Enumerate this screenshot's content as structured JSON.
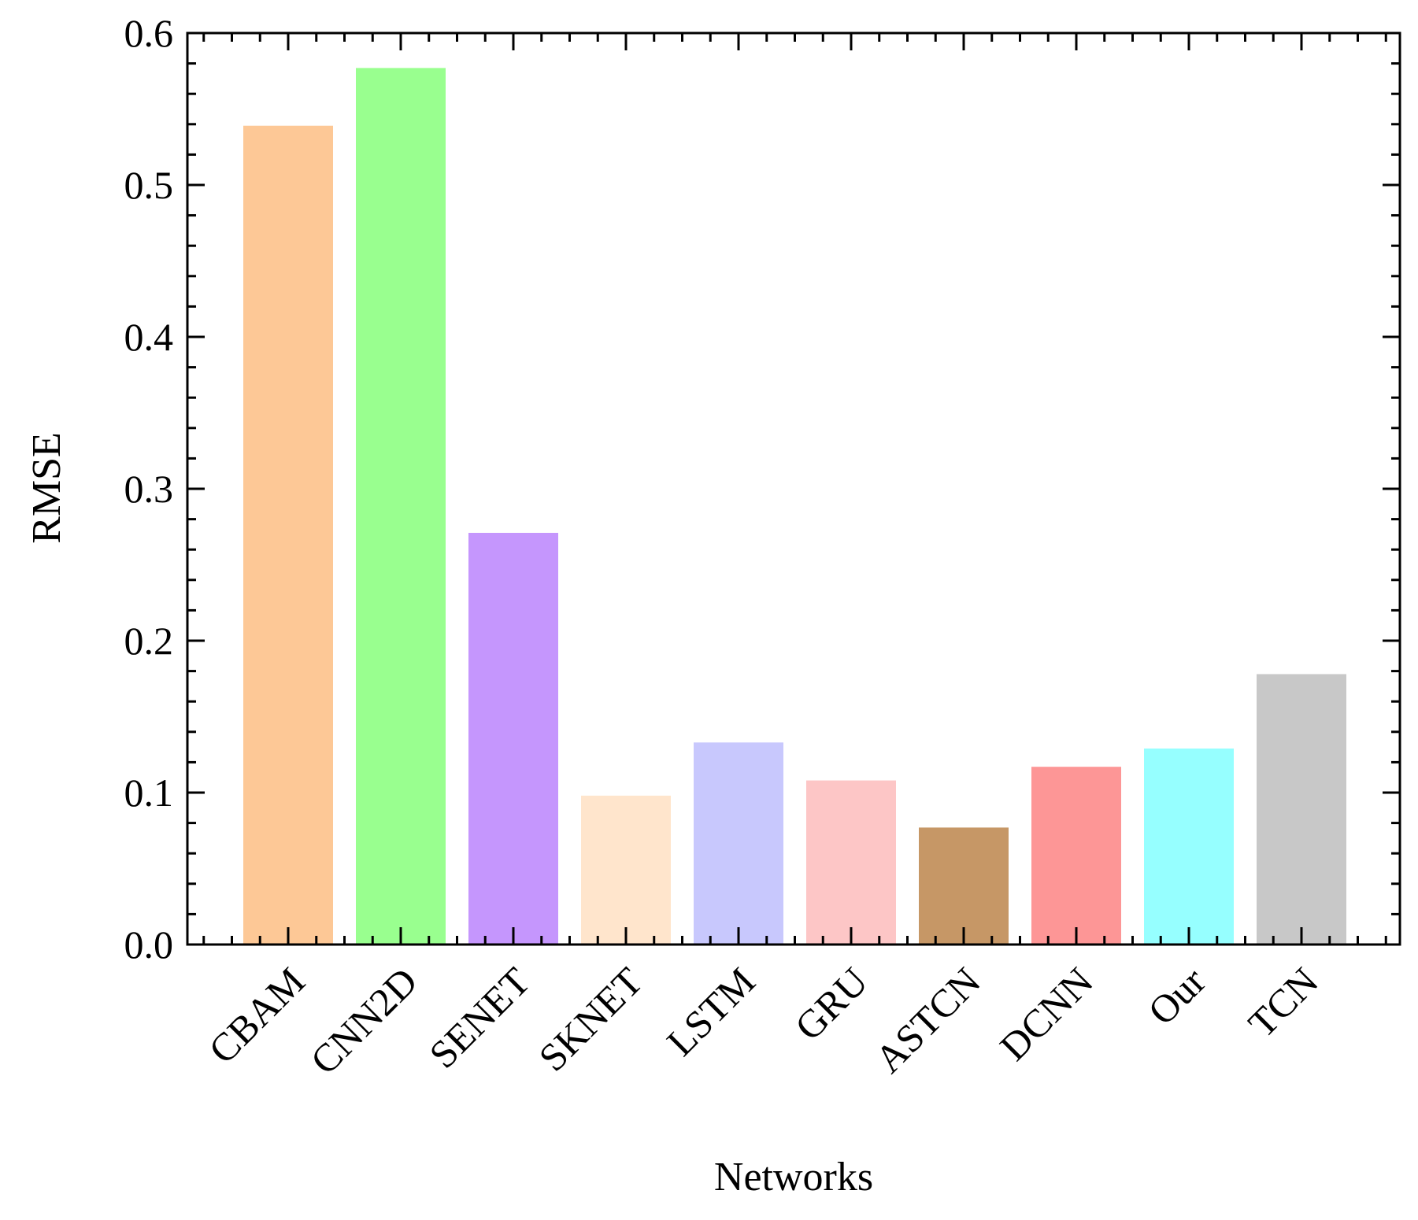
{
  "chart_data": {
    "type": "bar",
    "xlabel": "Networks",
    "ylabel": "RMSE",
    "ylim": [
      0,
      0.6
    ],
    "yticks": [
      "0.0",
      "0.1",
      "0.2",
      "0.3",
      "0.4",
      "0.5",
      "0.6"
    ],
    "categories": [
      "CBAM",
      "CNN2D",
      "SENET",
      "SKNET",
      "LSTM",
      "GRU",
      "ASTCN",
      "DCNN",
      "Our",
      "TCN"
    ],
    "values": [
      0.539,
      0.577,
      0.271,
      0.098,
      0.133,
      0.108,
      0.077,
      0.117,
      0.129,
      0.178
    ],
    "colors": [
      "#fdc896",
      "#99ff8f",
      "#c596fd",
      "#ffe5cc",
      "#c8c8fd",
      "#fdc6c6",
      "#c69766",
      "#fd9696",
      "#96ffff",
      "#c8c8c8"
    ],
    "grid": false,
    "legend": "none"
  }
}
